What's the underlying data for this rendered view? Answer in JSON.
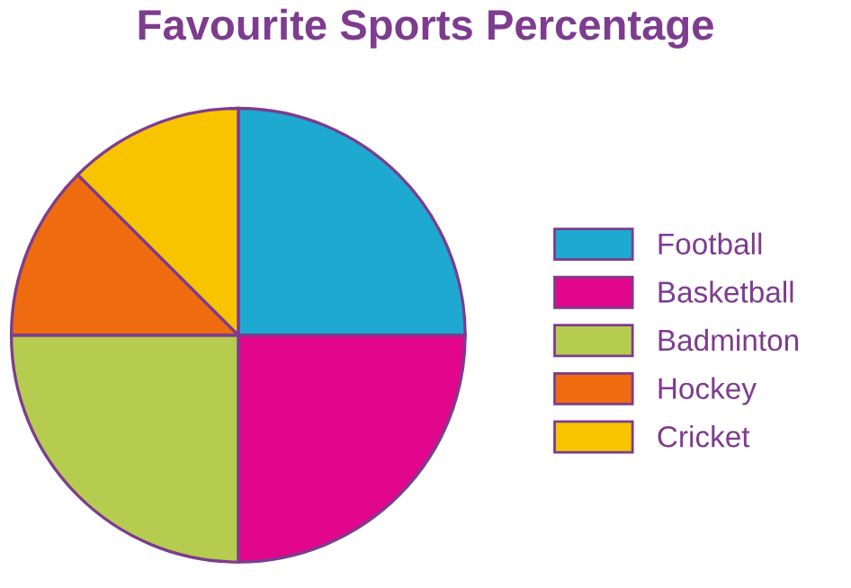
{
  "chart_data": {
    "type": "pie",
    "title": "Favourite Sports Percentage",
    "categories": [
      "Football",
      "Basketball",
      "Badminton",
      "Hockey",
      "Cricket"
    ],
    "values": [
      25,
      25,
      25,
      12.5,
      12.5
    ],
    "colors": [
      "#1ea9d1",
      "#e2068c",
      "#b6cc4e",
      "#ee6b10",
      "#f8c400"
    ],
    "legend": "right"
  }
}
